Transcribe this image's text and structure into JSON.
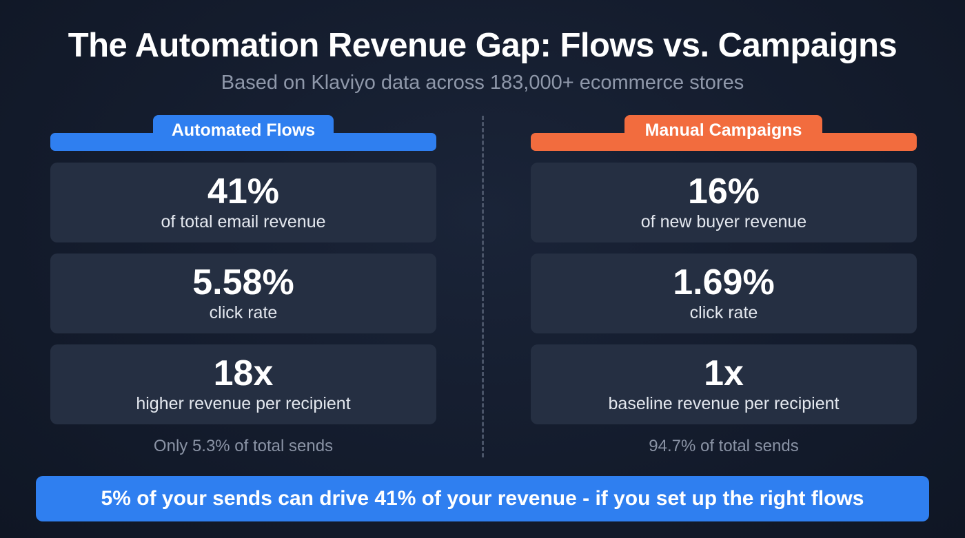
{
  "header": {
    "title": "The Automation Revenue Gap: Flows vs. Campaigns",
    "subtitle": "Based on Klaviyo data across 183,000+ ecommerce stores"
  },
  "colors": {
    "background": "#141c2d",
    "card": "#252f42",
    "flows_accent": "#2f7ff0",
    "campaigns_accent": "#f26c3e",
    "muted_text": "#8a93a5"
  },
  "flows": {
    "label": "Automated Flows",
    "stats": [
      {
        "value": "41%",
        "label": "of total email revenue"
      },
      {
        "value": "5.58%",
        "label": "click rate"
      },
      {
        "value": "18x",
        "label": "higher revenue per recipient"
      }
    ],
    "footnote": "Only 5.3% of total sends"
  },
  "campaigns": {
    "label": "Manual Campaigns",
    "stats": [
      {
        "value": "16%",
        "label": "of new buyer revenue"
      },
      {
        "value": "1.69%",
        "label": "click rate"
      },
      {
        "value": "1x",
        "label": "baseline revenue per recipient"
      }
    ],
    "footnote": "94.7% of total sends"
  },
  "banner": {
    "text": "5% of your sends can drive 41% of your revenue - if you set up the right flows"
  }
}
